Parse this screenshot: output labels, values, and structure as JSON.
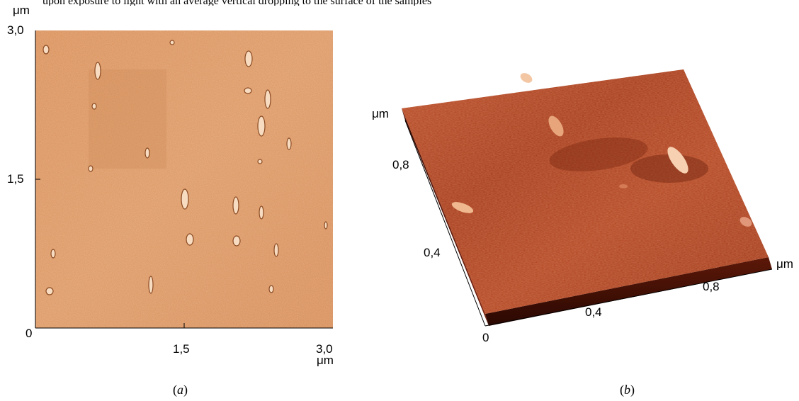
{
  "caption_fragment": "upon exposure to light with an average vertical dropping to the surface of the samples",
  "panel_a": {
    "unit_y": "μm",
    "unit_x": "μm",
    "y_ticks": [
      "3,0",
      "1,5",
      "0"
    ],
    "x_ticks": [
      "1,5",
      "3,0"
    ],
    "label": "(a)",
    "label_letter": "a",
    "image_colors": {
      "base": "#d9905a",
      "light": "#f3c79f",
      "dark": "#b86c38"
    }
  },
  "panel_b": {
    "unit_left": "μm",
    "unit_right": "μm",
    "left_ticks": [
      "0,8",
      "0,4"
    ],
    "bottom_ticks": [
      "0,4",
      "0,8"
    ],
    "origin": "0",
    "label": "(b)",
    "label_letter": "b",
    "surface_colors": {
      "base": "#a8391a",
      "light": "#d76a3e",
      "dark": "#5e1608"
    }
  }
}
